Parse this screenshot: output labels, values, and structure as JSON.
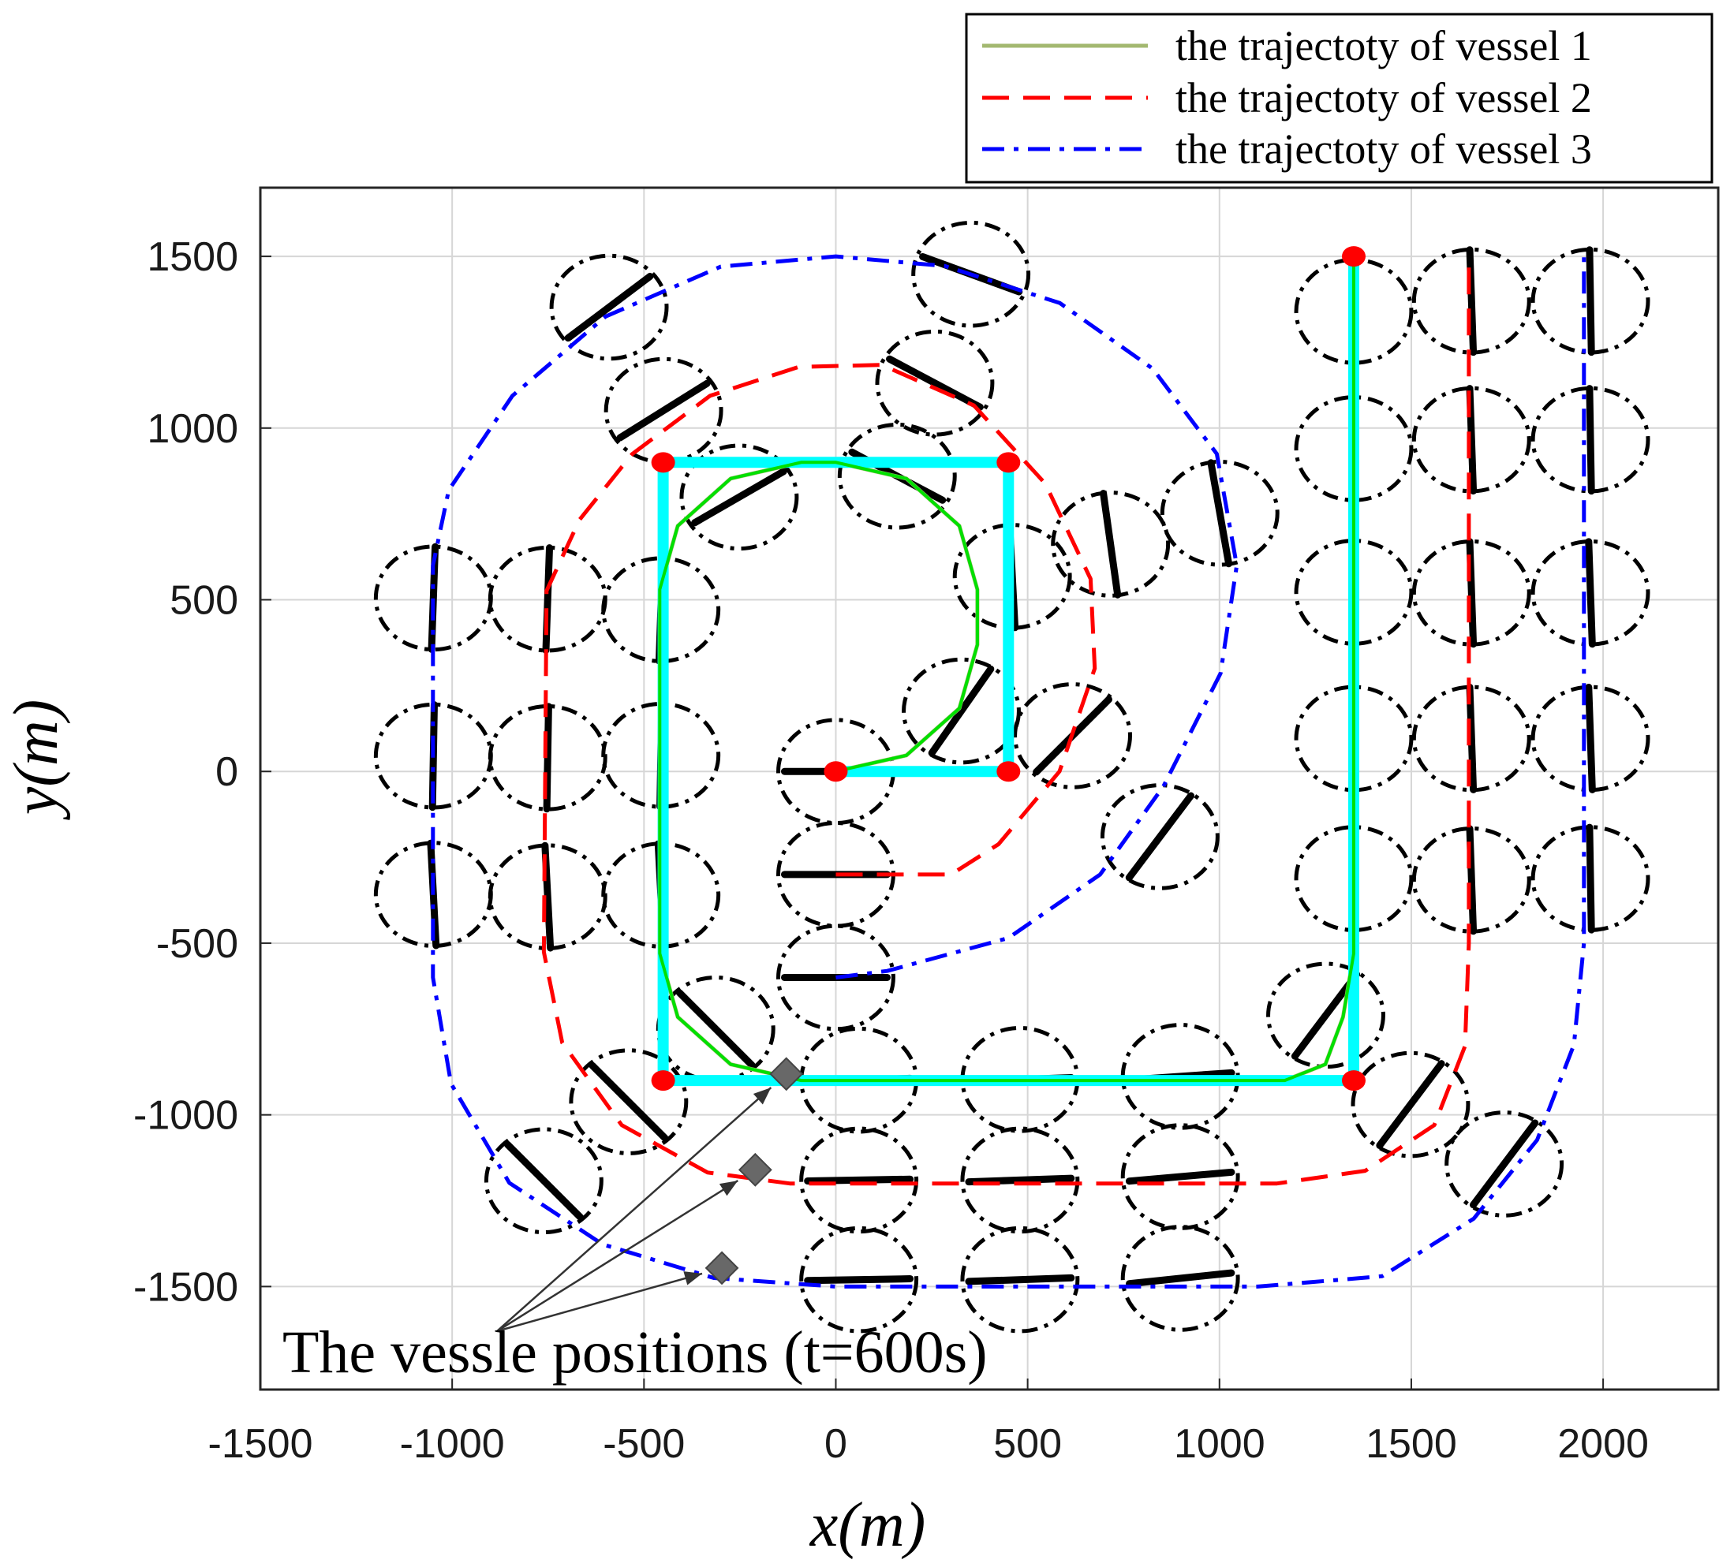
{
  "chart_data": {
    "type": "line",
    "xlabel": "x(m)",
    "ylabel": "y(m)",
    "xlim": [
      -1500,
      2300
    ],
    "ylim": [
      -1800,
      1700
    ],
    "xticks": [
      -1500,
      -1000,
      -500,
      0,
      500,
      1000,
      1500,
      2000
    ],
    "yticks": [
      -1500,
      -1000,
      -500,
      0,
      500,
      1000,
      1500
    ],
    "grid": true,
    "legend_position": "top-right",
    "annotation": "The vessle positions (t=600s)",
    "series": [
      {
        "name": "the trajectoty of vessel 1",
        "color": "#a3b870",
        "style": "solid",
        "points": [
          [
            0,
            0
          ],
          [
            184,
            47
          ],
          [
            322,
            184
          ],
          [
            369,
            369
          ],
          [
            369,
            530
          ],
          [
            322,
            715
          ],
          [
            184,
            853
          ],
          [
            0,
            900
          ],
          [
            -90,
            900
          ],
          [
            -274,
            853
          ],
          [
            -412,
            715
          ],
          [
            -459,
            530
          ],
          [
            -459,
            -530
          ],
          [
            -412,
            -715
          ],
          [
            -274,
            -853
          ],
          [
            -90,
            -900
          ],
          [
            1170,
            -900
          ],
          [
            1276,
            -853
          ],
          [
            1322,
            -715
          ],
          [
            1350,
            -530
          ],
          [
            1350,
            1500
          ]
        ]
      },
      {
        "name": "the trajectoty of vessel 2",
        "color": "#ff0000",
        "style": "dashed",
        "points": [
          [
            0,
            -300
          ],
          [
            300,
            -300
          ],
          [
            424,
            -212
          ],
          [
            583,
            0
          ],
          [
            675,
            300
          ],
          [
            664,
            561
          ],
          [
            546,
            838
          ],
          [
            360,
            1066
          ],
          [
            120,
            1184
          ],
          [
            -97,
            1178
          ],
          [
            -328,
            1094
          ],
          [
            -531,
            924
          ],
          [
            -668,
            733
          ],
          [
            -754,
            526
          ],
          [
            -761,
            -526
          ],
          [
            -713,
            -790
          ],
          [
            -558,
            -1030
          ],
          [
            -334,
            -1168
          ],
          [
            -120,
            -1200
          ],
          [
            1150,
            -1200
          ],
          [
            1380,
            -1163
          ],
          [
            1560,
            -1030
          ],
          [
            1640,
            -800
          ],
          [
            1650,
            -500
          ],
          [
            1650,
            1500
          ]
        ]
      },
      {
        "name": "the trajectoty of vessel 3",
        "color": "#0000ff",
        "style": "dashdot",
        "points": [
          [
            0,
            -600
          ],
          [
            134,
            -581
          ],
          [
            450,
            -485
          ],
          [
            689,
            -300
          ],
          [
            854,
            -43
          ],
          [
            1003,
            286
          ],
          [
            1045,
            600
          ],
          [
            993,
            925
          ],
          [
            826,
            1173
          ],
          [
            584,
            1364
          ],
          [
            284,
            1472
          ],
          [
            0,
            1500
          ],
          [
            -300,
            1470
          ],
          [
            -600,
            1325
          ],
          [
            -843,
            1094
          ],
          [
            -1009,
            819
          ],
          [
            -1050,
            600
          ],
          [
            -1050,
            -600
          ],
          [
            -1003,
            -909
          ],
          [
            -851,
            -1198
          ],
          [
            -608,
            -1377
          ],
          [
            -318,
            -1475
          ],
          [
            0,
            -1500
          ],
          [
            1100,
            -1500
          ],
          [
            1424,
            -1470
          ],
          [
            1663,
            -1302
          ],
          [
            1828,
            -1073
          ],
          [
            1924,
            -796
          ],
          [
            1950,
            -500
          ],
          [
            1950,
            1500
          ]
        ]
      }
    ],
    "path_legs": [
      [
        [
          0,
          0
        ],
        [
          450,
          0
        ],
        [
          450,
          900
        ],
        [
          -450,
          900
        ],
        [
          -450,
          -900
        ],
        [
          1350,
          -900
        ],
        [
          1350,
          1500
        ]
      ]
    ],
    "waypoints": [
      [
        0,
        0
      ],
      [
        450,
        0
      ],
      [
        450,
        900
      ],
      [
        -450,
        900
      ],
      [
        -450,
        -900
      ],
      [
        1350,
        -900
      ],
      [
        1350,
        1500
      ]
    ],
    "vessel_positions_t600": [
      [
        -129,
        -881
      ],
      [
        -210,
        -1160
      ],
      [
        -297,
        -1446
      ]
    ],
    "ship_footprints": [
      [
        0,
        0,
        0
      ],
      [
        0,
        -300,
        0
      ],
      [
        0,
        -600,
        0
      ],
      [
        327,
        176,
        55
      ],
      [
        460,
        568,
        93
      ],
      [
        -252,
        799,
        30
      ],
      [
        160,
        860,
        -28
      ],
      [
        258,
        1131,
        -28
      ],
      [
        352,
        1448,
        -20
      ],
      [
        -449,
        1051,
        32
      ],
      [
        -591,
        1352,
        37
      ],
      [
        716,
        662,
        98
      ],
      [
        1001,
        752,
        100
      ],
      [
        -456,
        471,
        88
      ],
      [
        -456,
        47,
        89
      ],
      [
        -456,
        -360,
        93
      ],
      [
        -751,
        502,
        88
      ],
      [
        -751,
        40,
        89
      ],
      [
        -751,
        -365,
        93
      ],
      [
        -1049,
        505,
        88
      ],
      [
        -1049,
        45,
        89
      ],
      [
        -1049,
        -358,
        93
      ],
      [
        -313,
        -750,
        -45
      ],
      [
        -540,
        -962,
        -45
      ],
      [
        -761,
        -1192,
        -45
      ],
      [
        617,
        104,
        45
      ],
      [
        845,
        -190,
        53
      ],
      [
        1277,
        -710,
        53
      ],
      [
        1498,
        -970,
        53
      ],
      [
        1742,
        -1143,
        53
      ],
      [
        60,
        -899,
        2
      ],
      [
        480,
        -897,
        2
      ],
      [
        898,
        -888,
        4
      ],
      [
        60,
        -1190,
        1
      ],
      [
        480,
        -1190,
        2
      ],
      [
        898,
        -1180,
        5
      ],
      [
        60,
        -1480,
        1
      ],
      [
        480,
        -1480,
        2
      ],
      [
        898,
        -1476,
        6
      ],
      [
        1350,
        1340,
        91
      ],
      [
        1350,
        940,
        91
      ],
      [
        1350,
        522,
        92
      ],
      [
        1350,
        96,
        92
      ],
      [
        1350,
        -312,
        92
      ],
      [
        1657,
        1370,
        92
      ],
      [
        1657,
        966,
        92
      ],
      [
        1657,
        520,
        92
      ],
      [
        1657,
        96,
        92
      ],
      [
        1657,
        -316,
        92
      ],
      [
        1967,
        1370,
        91
      ],
      [
        1967,
        966,
        91
      ],
      [
        1967,
        520,
        92
      ],
      [
        1967,
        96,
        92
      ],
      [
        1967,
        -312,
        91
      ]
    ],
    "colors": {
      "path": "#00ffff",
      "arc": "#00e000",
      "waypoint": "#ff0000",
      "marker": "#686868"
    }
  }
}
